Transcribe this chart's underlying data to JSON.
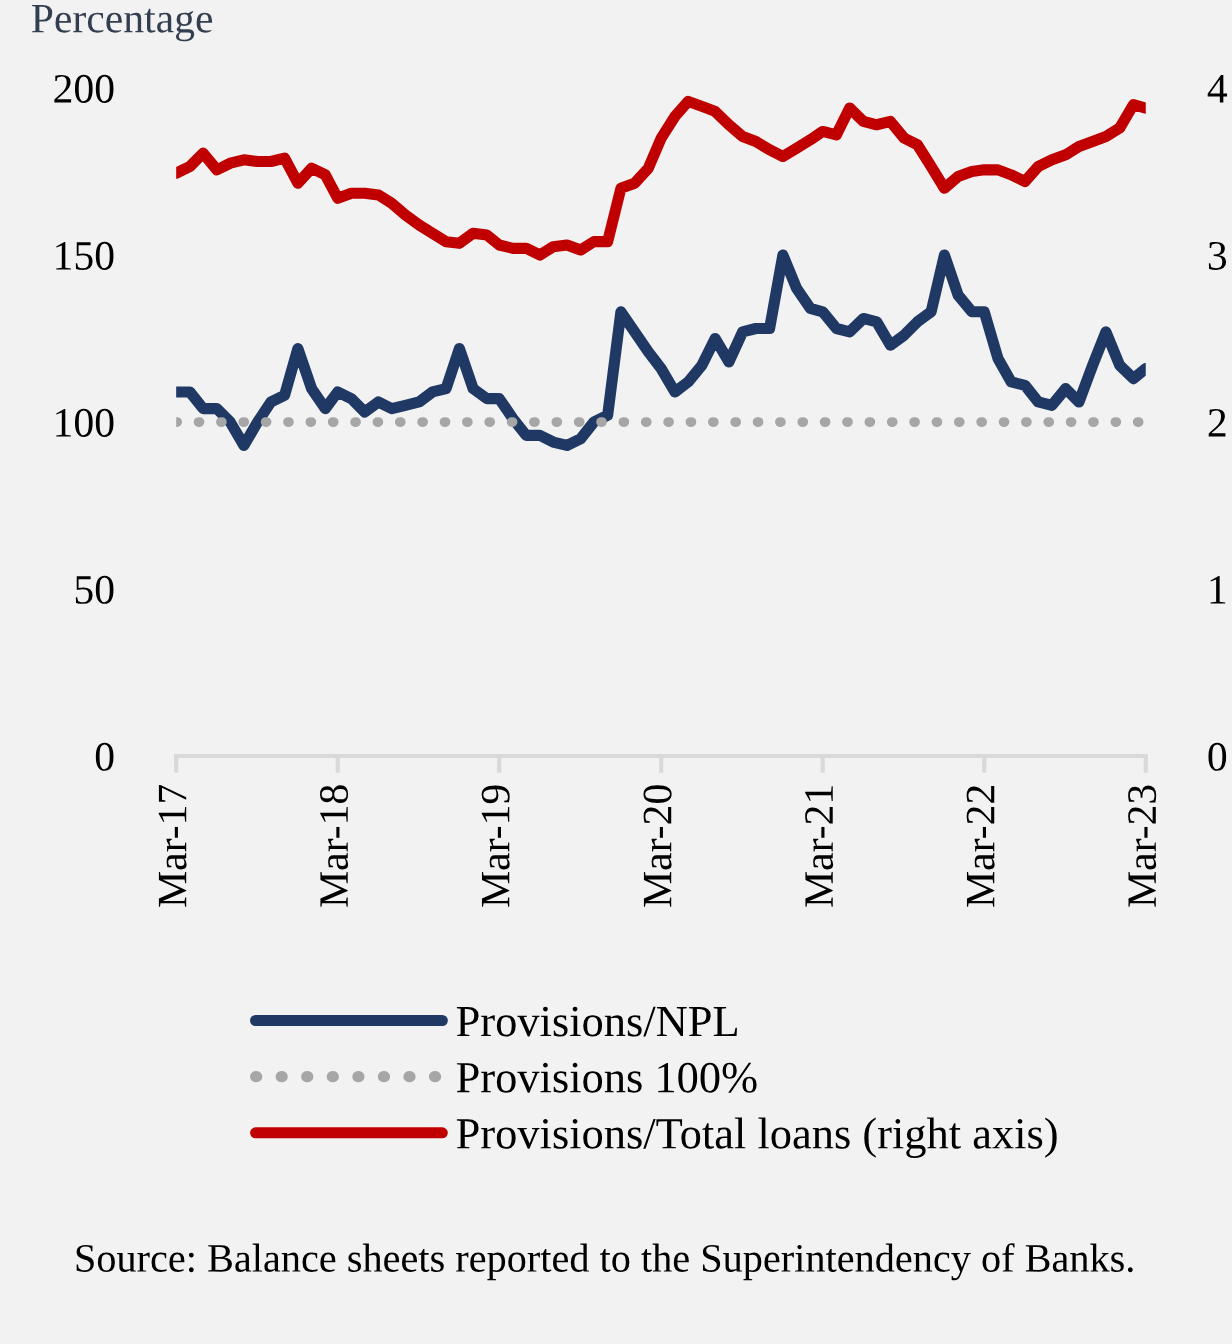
{
  "chart_data": {
    "type": "line",
    "ylabel": "Percentage",
    "x": [
      "2017-03",
      "2017-04",
      "2017-05",
      "2017-06",
      "2017-07",
      "2017-08",
      "2017-09",
      "2017-10",
      "2017-11",
      "2017-12",
      "2018-01",
      "2018-02",
      "2018-03",
      "2018-04",
      "2018-05",
      "2018-06",
      "2018-07",
      "2018-08",
      "2018-09",
      "2018-10",
      "2018-11",
      "2018-12",
      "2019-01",
      "2019-02",
      "2019-03",
      "2019-04",
      "2019-05",
      "2019-06",
      "2019-07",
      "2019-08",
      "2019-09",
      "2019-10",
      "2019-11",
      "2019-12",
      "2020-01",
      "2020-02",
      "2020-03",
      "2020-04",
      "2020-05",
      "2020-06",
      "2020-07",
      "2020-08",
      "2020-09",
      "2020-10",
      "2020-11",
      "2020-12",
      "2021-01",
      "2021-02",
      "2021-03",
      "2021-04",
      "2021-05",
      "2021-06",
      "2021-07",
      "2021-08",
      "2021-09",
      "2021-10",
      "2021-11",
      "2021-12",
      "2022-01",
      "2022-02",
      "2022-03",
      "2022-04",
      "2022-05",
      "2022-06",
      "2022-07",
      "2022-08",
      "2022-09",
      "2022-10",
      "2022-11",
      "2022-12",
      "2023-01",
      "2023-02",
      "2023-03"
    ],
    "series": [
      {
        "name": "Provisions/NPL",
        "color": "#1f3864",
        "line_style": "solid",
        "values": [
          109,
          109,
          104,
          104,
          100,
          93,
          100,
          106,
          108,
          122,
          110,
          104,
          109,
          107,
          103,
          106,
          104,
          105,
          106,
          109,
          110,
          122,
          110,
          107,
          107,
          101,
          96,
          96,
          94,
          93,
          95,
          100,
          102,
          133,
          127,
          121,
          116,
          109,
          112,
          117,
          125,
          118,
          127,
          128,
          128,
          150,
          140,
          134,
          133,
          128,
          127,
          131,
          130,
          123,
          126,
          130,
          133,
          150,
          138,
          133,
          133,
          119,
          112,
          111,
          106,
          105,
          110,
          106,
          117,
          127,
          117,
          113,
          116
        ]
      },
      {
        "name": "Provisions 100%",
        "color": "#a6a6a6",
        "line_style": "dotted",
        "x": [
          "2017-03",
          "2023-03"
        ],
        "values": [
          100,
          100
        ]
      },
      {
        "name": "Provisions/Total loans (right axis)",
        "color": "#c00000",
        "line_style": "solid",
        "axis": "y2",
        "values": [
          3.49,
          3.53,
          3.61,
          3.51,
          3.55,
          3.57,
          3.56,
          3.56,
          3.58,
          3.43,
          3.52,
          3.48,
          3.34,
          3.37,
          3.37,
          3.36,
          3.31,
          3.24,
          3.18,
          3.13,
          3.08,
          3.07,
          3.13,
          3.12,
          3.06,
          3.04,
          3.04,
          3.0,
          3.05,
          3.06,
          3.03,
          3.08,
          3.08,
          3.4,
          3.43,
          3.52,
          3.7,
          3.83,
          3.92,
          3.89,
          3.86,
          3.78,
          3.71,
          3.68,
          3.63,
          3.59,
          3.64,
          3.69,
          3.74,
          3.72,
          3.88,
          3.8,
          3.78,
          3.8,
          3.7,
          3.66,
          3.53,
          3.4,
          3.47,
          3.5,
          3.51,
          3.51,
          3.48,
          3.44,
          3.53,
          3.57,
          3.6,
          3.65,
          3.68,
          3.71,
          3.76,
          3.9,
          3.88
        ]
      }
    ],
    "xlim": [
      "2017-03",
      "2023-03"
    ],
    "xticks": [
      {
        "value": "2017-03",
        "label": "Mar-17"
      },
      {
        "value": "2018-03",
        "label": "Mar-18"
      },
      {
        "value": "2019-03",
        "label": "Mar-19"
      },
      {
        "value": "2020-03",
        "label": "Mar-20"
      },
      {
        "value": "2021-03",
        "label": "Mar-21"
      },
      {
        "value": "2022-03",
        "label": "Mar-22"
      },
      {
        "value": "2023-03",
        "label": "Mar-23"
      }
    ],
    "ylim": [
      0,
      200
    ],
    "yticks": [
      0,
      50,
      100,
      150,
      200
    ],
    "y2lim": [
      0,
      4
    ],
    "y2ticks": [
      0,
      1,
      2,
      3,
      4
    ],
    "grid": false,
    "legend": "bottom",
    "marker": "none",
    "annotations": [
      "Source: Balance sheets reported to the Superintendency of Banks."
    ]
  }
}
